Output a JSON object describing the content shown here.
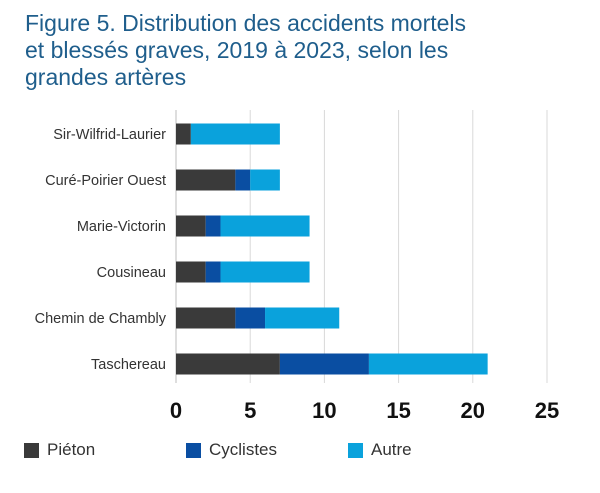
{
  "title_lines": [
    "Figure 5. Distribution des accidents mortels",
    "et blessés graves, 2019 à 2023, selon les",
    "grandes artères"
  ],
  "chart_data": {
    "type": "bar",
    "orientation": "horizontal",
    "stacked": true,
    "title": "Figure 5. Distribution des accidents mortels et blessés graves, 2019 à 2023, selon les grandes artères",
    "categories": [
      "Sir-Wilfrid-Laurier",
      "Curé-Poirier Ouest",
      "Marie-Victorin",
      "Cousineau",
      "Chemin de Chambly",
      "Taschereau"
    ],
    "series": [
      {
        "name": "Piéton",
        "color": "#3a3a3a",
        "values": [
          1,
          4,
          2,
          2,
          4,
          7
        ]
      },
      {
        "name": "Cyclistes",
        "color": "#0a4ea2",
        "values": [
          0,
          1,
          1,
          1,
          2,
          6
        ]
      },
      {
        "name": "Autre",
        "color": "#0aa2dc",
        "values": [
          6,
          2,
          6,
          6,
          5,
          8
        ]
      }
    ],
    "x_ticks": [
      "0",
      "5",
      "10",
      "15",
      "20",
      "25"
    ],
    "xlim": [
      0,
      25
    ],
    "xlabel": "",
    "ylabel": "",
    "grid": true,
    "legend_position": "bottom"
  }
}
